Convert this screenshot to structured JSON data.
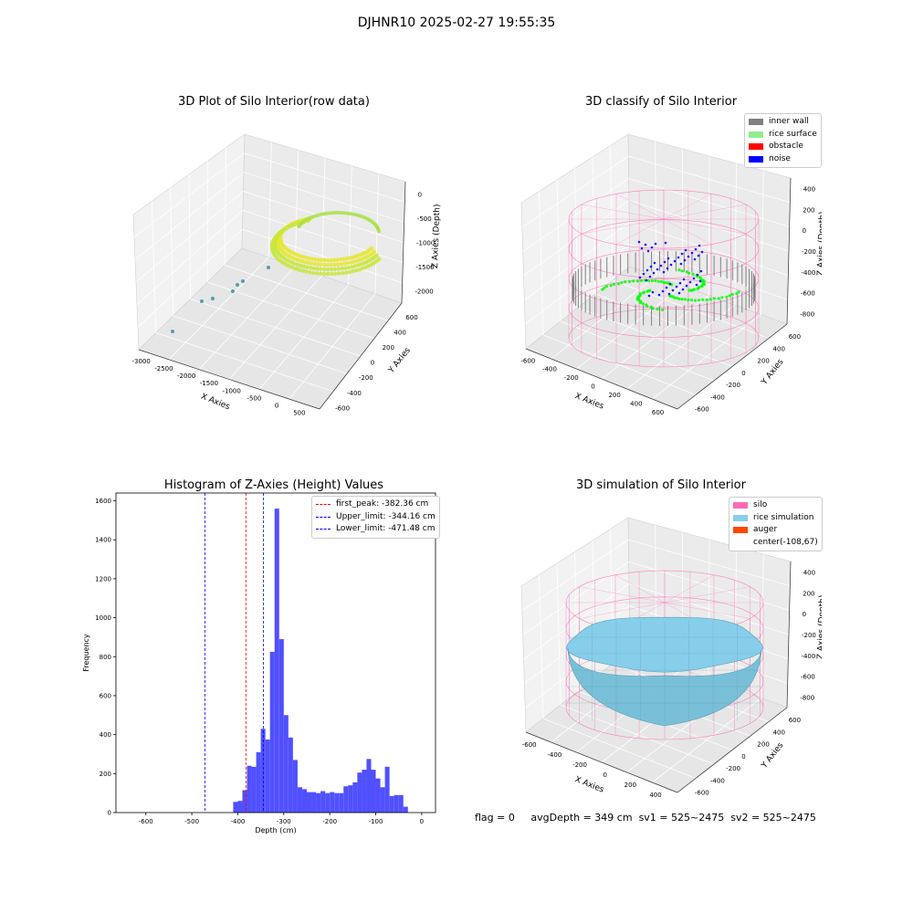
{
  "suptitle": "DJHNR10 2025-02-27 19:55:35",
  "colors": {
    "inner_wall": "#808080",
    "rice_surface": "#90ee90",
    "obstacle": "#ff0000",
    "noise": "#0000ff",
    "silo": "#ff69b4",
    "rice_simulation": "#87ceeb",
    "auger": "#ff4500",
    "hist_bar": "#5050ff"
  },
  "chart_data": [
    {
      "type": "scatter",
      "title": "3D Plot of Silo Interior(row data)",
      "xlabel": "X Axies",
      "ylabel": "Y Axies",
      "zlabel": "Z Axies (Depth)",
      "x_ticks": [
        "-3000",
        "-2500",
        "-2000",
        "-1500",
        "-1000",
        "-500",
        "0",
        "500"
      ],
      "y_ticks": [
        "-600",
        "-400",
        "-200",
        "0",
        "200",
        "400",
        "600"
      ],
      "z_ticks": [
        "-2000",
        "-1500",
        "-1000",
        "-500",
        "0"
      ],
      "grid": true
    },
    {
      "type": "scatter",
      "title": "3D classify of Silo Interior",
      "xlabel": "X Axies",
      "ylabel": "Y Axies",
      "zlabel": "Z Axies (Depth)",
      "x_ticks": [
        "-600",
        "-400",
        "-200",
        "0",
        "200",
        "400",
        "600"
      ],
      "y_ticks": [
        "-600",
        "-400",
        "-200",
        "0",
        "200",
        "400",
        "600"
      ],
      "z_ticks": [
        "-800",
        "-600",
        "-400",
        "-200",
        "0",
        "200",
        "400"
      ],
      "legend": [
        "inner wall",
        "rice surface",
        "obstacle",
        "noise"
      ],
      "legend_position": "top-right",
      "grid": true
    },
    {
      "type": "bar",
      "title": "Histogram of Z-Axies (Height) Values",
      "xlabel": "Depth (cm)",
      "ylabel": "Frequency",
      "xlim": [
        -665,
        30
      ],
      "ylim": [
        0,
        1640
      ],
      "x_ticks": [
        -600,
        -500,
        -400,
        -300,
        -200,
        -100,
        0
      ],
      "y_ticks": [
        0,
        200,
        400,
        600,
        800,
        1000,
        1200,
        1400,
        1600
      ],
      "bin_width": 10,
      "bins": [
        [
          -500,
          55
        ],
        [
          -490,
          60
        ],
        [
          -480,
          115
        ],
        [
          -470,
          240
        ],
        [
          -460,
          235
        ],
        [
          -450,
          310
        ],
        [
          -440,
          430
        ],
        [
          -430,
          375
        ],
        [
          -420,
          825
        ],
        [
          -410,
          1560
        ],
        [
          -400,
          890
        ],
        [
          -390,
          500
        ],
        [
          -380,
          385
        ],
        [
          -370,
          270
        ],
        [
          -360,
          130
        ],
        [
          -350,
          120
        ],
        [
          -340,
          105
        ],
        [
          -330,
          105
        ],
        [
          -320,
          100
        ],
        [
          -310,
          110
        ],
        [
          -300,
          100
        ],
        [
          -290,
          105
        ],
        [
          -280,
          100
        ],
        [
          -270,
          100
        ],
        [
          -260,
          135
        ],
        [
          -250,
          140
        ],
        [
          -240,
          155
        ],
        [
          -230,
          205
        ],
        [
          -220,
          220
        ],
        [
          -210,
          275
        ],
        [
          -200,
          220
        ],
        [
          -190,
          175
        ],
        [
          -180,
          130
        ],
        [
          -170,
          235
        ],
        [
          -160,
          85
        ],
        [
          -150,
          90
        ],
        [
          -140,
          90
        ],
        [
          -130,
          30
        ]
      ],
      "bin_offset": 90,
      "vlines": [
        {
          "label": "first_peak: -382.36 cm",
          "value": -382.36,
          "color": "#ff0000"
        },
        {
          "label": "Upper_limit: -344.16 cm",
          "value": -344.16,
          "color": "#0000ff"
        },
        {
          "label": "Lower_limit: -471.48 cm",
          "value": -471.48,
          "color": "#0000ff"
        }
      ],
      "legend_position": "top-right",
      "grid": false
    },
    {
      "type": "scatter",
      "title": "3D simulation of Silo Interior",
      "xlabel": "X Axies",
      "ylabel": "Y Axies",
      "zlabel": "Z Axies (Depth)",
      "x_ticks": [
        "-600",
        "-400",
        "-200",
        "0",
        "200",
        "400"
      ],
      "y_ticks": [
        "-600",
        "-400",
        "-200",
        "0",
        "200",
        "400",
        "600"
      ],
      "z_ticks": [
        "-800",
        "-600",
        "-400",
        "-200",
        "0",
        "200",
        "400"
      ],
      "legend": [
        "silo",
        "rice simulation",
        "auger",
        "center(-108,67)"
      ],
      "legend_position": "top-right",
      "grid": true
    }
  ],
  "footer": {
    "flag": "flag = 0",
    "avg_depth": "avgDepth = 349 cm",
    "sv1": "sv1 = 525~2475",
    "sv2": "sv2 = 525~2475"
  }
}
